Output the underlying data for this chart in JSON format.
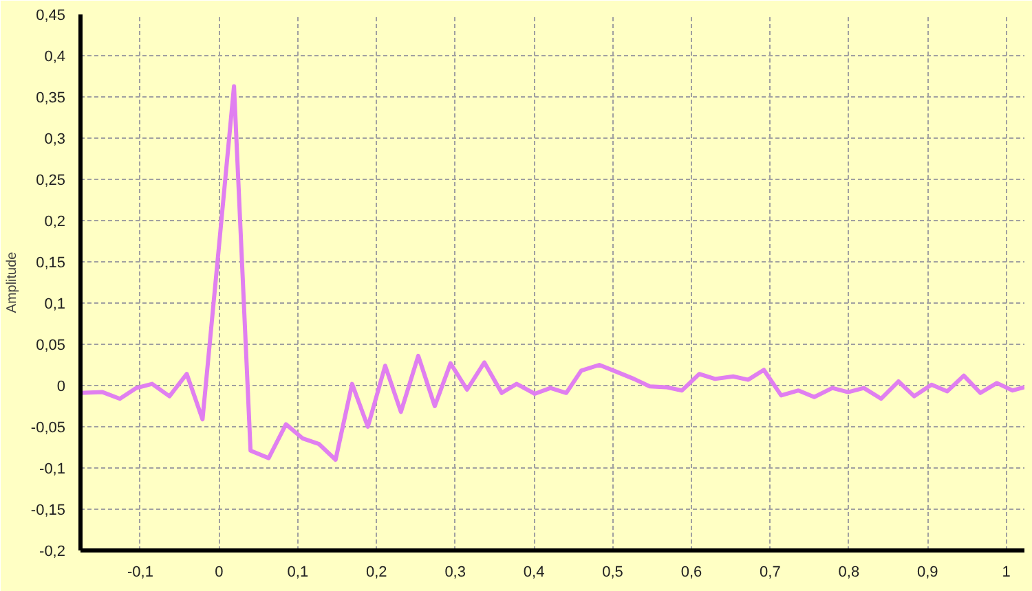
{
  "chart_data": {
    "type": "line",
    "ylabel": "Amplitude",
    "x": [
      -0.176,
      -0.148,
      -0.126,
      -0.105,
      -0.085,
      -0.063,
      -0.041,
      -0.021,
      0.0,
      0.019,
      0.04,
      0.063,
      0.085,
      0.106,
      0.127,
      0.148,
      0.169,
      0.189,
      0.211,
      0.231,
      0.253,
      0.274,
      0.294,
      0.315,
      0.337,
      0.359,
      0.378,
      0.401,
      0.421,
      0.441,
      0.46,
      0.483,
      0.504,
      0.527,
      0.547,
      0.568,
      0.588,
      0.61,
      0.63,
      0.653,
      0.672,
      0.692,
      0.714,
      0.736,
      0.756,
      0.779,
      0.799,
      0.819,
      0.841,
      0.863,
      0.883,
      0.905,
      0.925,
      0.946,
      0.967,
      0.988,
      1.008,
      1.023
    ],
    "series": [
      {
        "color": "#e07ff0",
        "values": [
          -0.009,
          -0.008,
          -0.016,
          -0.003,
          0.002,
          -0.013,
          0.014,
          -0.041,
          0.17,
          0.363,
          -0.079,
          -0.088,
          -0.047,
          -0.064,
          -0.071,
          -0.09,
          0.002,
          -0.05,
          0.024,
          -0.032,
          0.036,
          -0.025,
          0.027,
          -0.005,
          0.028,
          -0.009,
          0.002,
          -0.01,
          -0.003,
          -0.009,
          0.018,
          0.025,
          0.017,
          0.008,
          -0.001,
          -0.002,
          -0.006,
          0.014,
          0.008,
          0.011,
          0.007,
          0.019,
          -0.012,
          -0.006,
          -0.014,
          -0.003,
          -0.008,
          -0.003,
          -0.016,
          0.005,
          -0.013,
          0.001,
          -0.007,
          0.012,
          -0.009,
          0.003,
          -0.006,
          -0.002
        ]
      }
    ],
    "xlim": [
      -0.176,
      1.023
    ],
    "ylim": [
      -0.2,
      0.45
    ],
    "xticks": [
      {
        "value": -0.1,
        "label": "-0,1"
      },
      {
        "value": 0,
        "label": "0"
      },
      {
        "value": 0.1,
        "label": "0,1"
      },
      {
        "value": 0.2,
        "label": "0,2"
      },
      {
        "value": 0.3,
        "label": "0,3"
      },
      {
        "value": 0.4,
        "label": "0,4"
      },
      {
        "value": 0.5,
        "label": "0,5"
      },
      {
        "value": 0.6,
        "label": "0,6"
      },
      {
        "value": 0.7,
        "label": "0,7"
      },
      {
        "value": 0.8,
        "label": "0,8"
      },
      {
        "value": 0.9,
        "label": "0,9"
      },
      {
        "value": 1,
        "label": "1"
      }
    ],
    "yticks": [
      {
        "value": -0.2,
        "label": "-0,2"
      },
      {
        "value": -0.15,
        "label": "-0,15"
      },
      {
        "value": -0.1,
        "label": "-0,1"
      },
      {
        "value": -0.05,
        "label": "-0,05"
      },
      {
        "value": 0,
        "label": "0"
      },
      {
        "value": 0.05,
        "label": "0,05"
      },
      {
        "value": 0.1,
        "label": "0,1"
      },
      {
        "value": 0.15,
        "label": "0,15"
      },
      {
        "value": 0.2,
        "label": "0,2"
      },
      {
        "value": 0.25,
        "label": "0,25"
      },
      {
        "value": 0.3,
        "label": "0,3"
      },
      {
        "value": 0.35,
        "label": "0,35"
      },
      {
        "value": 0.4,
        "label": "0,4"
      },
      {
        "value": 0.45,
        "label": "0,45"
      }
    ],
    "grid": true,
    "line_style": "solid"
  }
}
